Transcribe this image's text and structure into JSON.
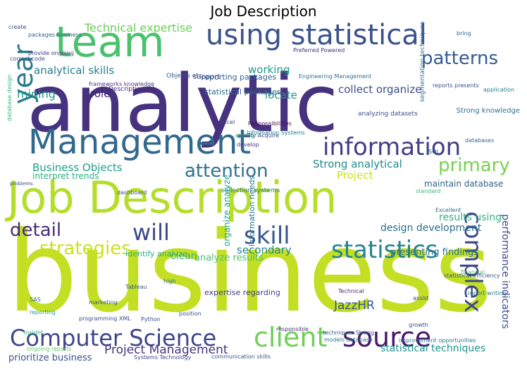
{
  "title": "Job Description",
  "words": [
    {
      "text": "business",
      "color": "#c2df23"
    },
    {
      "text": "analytic",
      "color": "#46327e"
    },
    {
      "text": "Job Description",
      "color": "#b5de2b"
    },
    {
      "text": "team",
      "color": "#4ac16d"
    },
    {
      "text": "using statistical",
      "color": "#3b528b"
    },
    {
      "text": "Management",
      "color": "#31688e"
    },
    {
      "text": "information",
      "color": "#433e85"
    },
    {
      "text": "year",
      "color": "#2a788e"
    },
    {
      "text": "attention",
      "color": "#2c728e"
    },
    {
      "text": "patterns",
      "color": "#365c8d"
    },
    {
      "text": "primary",
      "color": "#7ad151"
    },
    {
      "text": "detail",
      "color": "#472d7b"
    },
    {
      "text": "will",
      "color": "#3e4989"
    },
    {
      "text": "skill",
      "color": "#38588c"
    },
    {
      "text": "statistics",
      "color": "#25848e"
    },
    {
      "text": "complex",
      "color": "#3f4889"
    },
    {
      "text": "strategies",
      "color": "#cae11f"
    },
    {
      "text": "Computer Science",
      "color": "#404688"
    },
    {
      "text": "client",
      "color": "#70cf57"
    },
    {
      "text": "source",
      "color": "#481769"
    },
    {
      "text": "Technical expertise",
      "color": "#6ccd5a"
    },
    {
      "text": "analytical skills",
      "color": "#277f8e"
    },
    {
      "text": "mining",
      "color": "#1f988b"
    },
    {
      "text": "role",
      "color": "#482173"
    },
    {
      "text": "working",
      "color": "#1e9c89"
    },
    {
      "text": "locate",
      "color": "#21918c"
    },
    {
      "text": "collect organize",
      "color": "#3d4e8a"
    },
    {
      "text": "Business Objects",
      "color": "#1fa088"
    },
    {
      "text": "Strong analytical",
      "color": "#23888e"
    },
    {
      "text": "Project",
      "color": "#cde11d"
    },
    {
      "text": "maintain database",
      "color": "#34618d"
    },
    {
      "text": "design development",
      "color": "#2e6e8e"
    },
    {
      "text": "results using",
      "color": "#31b57b"
    },
    {
      "text": "secondary",
      "color": "#24868e"
    },
    {
      "text": "analyze results",
      "color": "#48c16e"
    },
    {
      "text": "presenting findings",
      "color": "#2d708e"
    },
    {
      "text": "JazzHR",
      "color": "#3a548c"
    },
    {
      "text": "Project Management",
      "color": "#46337f"
    },
    {
      "text": "statistical techniques",
      "color": "#1f948c"
    },
    {
      "text": "performance indicators",
      "color": "#3f4a8a"
    },
    {
      "text": "organize analyze",
      "color": "#20a386"
    },
    {
      "text": "information needs",
      "color": "#2b748e"
    },
    {
      "text": "clean",
      "color": "#35b779"
    },
    {
      "text": "Identify analyze",
      "color": "#2ab07f"
    },
    {
      "text": "expertise regarding",
      "color": "#414287"
    },
    {
      "text": "prioritize business",
      "color": "#3d4d8a"
    },
    {
      "text": "reporting packages",
      "color": "#33628d"
    },
    {
      "text": "statistical packages",
      "color": "#2f6b8e"
    },
    {
      "text": "support",
      "color": "#3b518b"
    },
    {
      "text": "Strong knowledge",
      "color": "#2e6f8e"
    },
    {
      "text": "interpret trends",
      "color": "#29af7f"
    },
    {
      "text": "collection systems",
      "color": "#2a768e"
    },
    {
      "text": "analyzing datasets",
      "color": "#3e4c8a"
    },
    {
      "text": "Description Job",
      "color": "#482576"
    },
    {
      "text": "Objects etc",
      "color": "#38598c"
    },
    {
      "text": "frameworks knowledge",
      "color": "#453781"
    },
    {
      "text": "segmentation techniques",
      "color": "#2c738e"
    },
    {
      "text": "reports presents",
      "color": "#3c4f8a"
    },
    {
      "text": "Information Systems",
      "color": "#26828e"
    },
    {
      "text": "Responsibilities",
      "color": "#46085c"
    },
    {
      "text": "Python",
      "color": "#3e4a89"
    },
    {
      "text": "Tableau",
      "color": "#375b8d"
    },
    {
      "text": "SQL",
      "color": "#2c718e"
    },
    {
      "text": "Excel",
      "color": "#424086"
    },
    {
      "text": "database design",
      "color": "#34b679"
    },
    {
      "text": "problems",
      "color": "#3d4e8a"
    },
    {
      "text": "Technical",
      "color": "#481b6d"
    },
    {
      "text": "programming XML",
      "color": "#3e4a89"
    },
    {
      "text": "databases",
      "color": "#31668e"
    },
    {
      "text": "SAS",
      "color": "#2d708e"
    },
    {
      "text": "reporting",
      "color": "#1fa187"
    },
    {
      "text": "quality",
      "color": "#42be71"
    },
    {
      "text": "marketing",
      "color": "#37598c"
    },
    {
      "text": "models database",
      "color": "#2a768e"
    },
    {
      "text": "communication skills",
      "color": "#3b528b"
    },
    {
      "text": "responsible",
      "color": "#472c7a"
    },
    {
      "text": "insight",
      "color": "#25ac82"
    },
    {
      "text": "ongoing reports",
      "color": "#5ec962"
    },
    {
      "text": "provide ongoing",
      "color": "#443a83"
    },
    {
      "text": "packages Business",
      "color": "#31668e"
    },
    {
      "text": "correct code",
      "color": "#3b518b"
    },
    {
      "text": "create",
      "color": "#3e4a89"
    },
    {
      "text": "Preferred Powered",
      "color": "#46327e"
    },
    {
      "text": "bring",
      "color": "#34618d"
    },
    {
      "text": "Engineering Management",
      "color": "#2d708e"
    },
    {
      "text": "application",
      "color": "#27808e"
    },
    {
      "text": "improvement opportunities",
      "color": "#2a778e"
    },
    {
      "text": "techniques Strong",
      "color": "#355f8d"
    },
    {
      "text": "dashboard",
      "color": "#3d4e8a"
    },
    {
      "text": "Systems Technology",
      "color": "#404688"
    },
    {
      "text": "financial",
      "color": "#5ac864"
    },
    {
      "text": "Excellent",
      "color": "#2f6c8e"
    },
    {
      "text": "standard",
      "color": "#38b977"
    },
    {
      "text": "quality Acquire",
      "color": "#3f4788"
    },
    {
      "text": "position",
      "color": "#3b528b"
    },
    {
      "text": "develop",
      "color": "#453882"
    },
    {
      "text": "report writing",
      "color": "#2b758e"
    },
    {
      "text": "growth",
      "color": "#3c4f8a"
    },
    {
      "text": "high",
      "color": "#2f6b8e"
    },
    {
      "text": "statistical efficiency",
      "color": "#365d8d"
    },
    {
      "text": "assist",
      "color": "#3e4989"
    }
  ]
}
